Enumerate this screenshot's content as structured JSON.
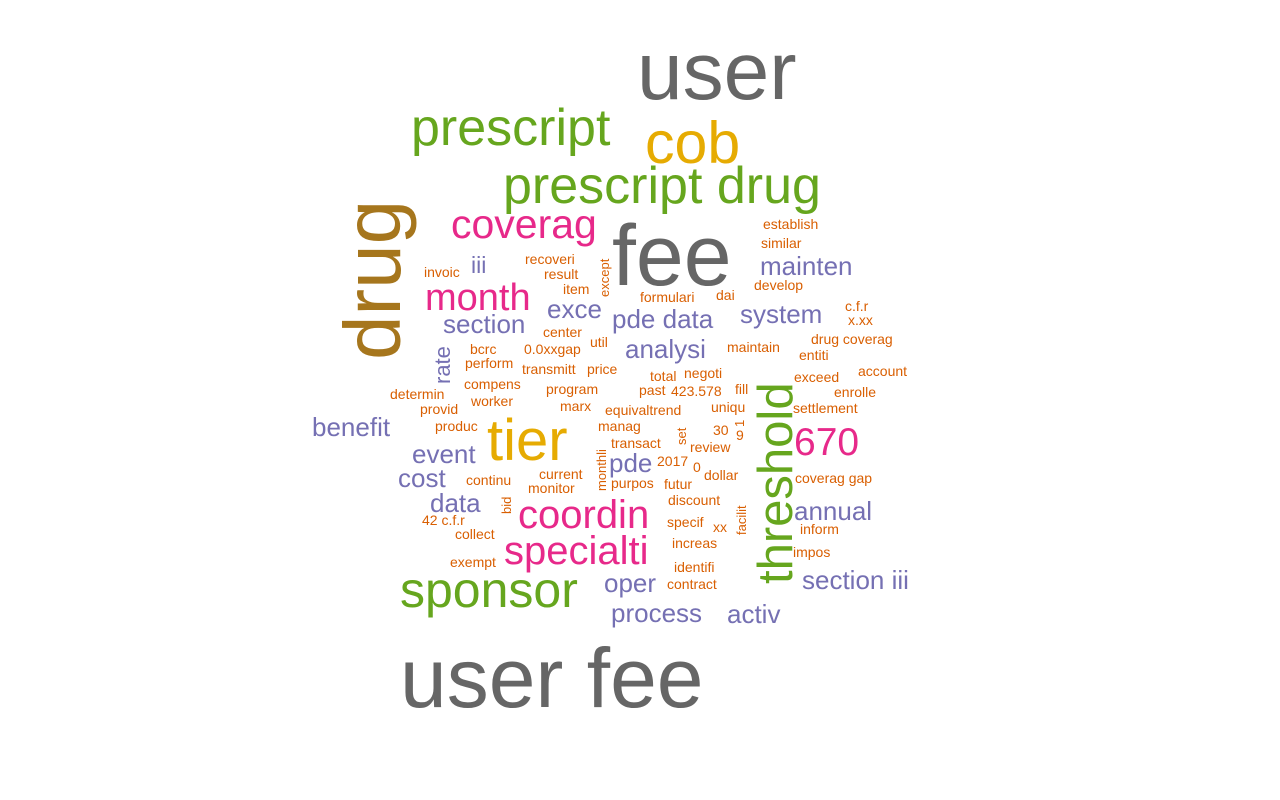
{
  "palette": {
    "gray": "#666666",
    "yellow": "#e6ab02",
    "green": "#66a61e",
    "brown": "#a6761d",
    "pink": "#e7298a",
    "purple": "#7570b3",
    "orange": "#d95f02"
  },
  "words": {
    "user": "user",
    "user_fee": "user fee",
    "fee": "fee",
    "prescript": "prescript",
    "cob": "cob",
    "prescript_drug": "prescript drug",
    "drug": "drug",
    "coverag": "coverag",
    "tier": "tier",
    "threshold": "threshold",
    "sponsor": "sponsor",
    "specialti": "specialti",
    "coordin": "coordin",
    "month": "month",
    "n670": "670",
    "mainten": "mainten",
    "section": "section",
    "exce": "exce",
    "pde_data": "pde data",
    "system": "system",
    "analysi": "analysi",
    "rate": "rate",
    "iii": "iii",
    "benefit": "benefit",
    "event": "event",
    "pde": "pde",
    "cost": "cost",
    "data": "data",
    "annual": "annual",
    "oper": "oper",
    "process": "process",
    "activ": "activ",
    "section_iii": "section iii",
    "establish": "establish",
    "similar": "similar",
    "recoveri": "recoveri",
    "except": "except",
    "invoic": "invoic",
    "result": "result",
    "item": "item",
    "develop": "develop",
    "formulari": "formulari",
    "dai": "dai",
    "cfr": "c.f.r",
    "xxx": "x.xx",
    "center": "center",
    "bcrc": "bcrc",
    "xxgap": "0.0xxgap",
    "util": "util",
    "maintain": "maintain",
    "drug_coverag": "drug coverag",
    "entiti": "entiti",
    "perform": "perform",
    "transmitt": "transmitt",
    "price": "price",
    "total": "total",
    "negoti": "negoti",
    "exceed": "exceed",
    "account": "account",
    "compens": "compens",
    "program": "program",
    "past": "past",
    "n423": "423.578",
    "fill": "fill",
    "enrolle": "enrolle",
    "determin": "determin",
    "worker": "worker",
    "marx": "marx",
    "equivaltrend": "equivaltrend",
    "uniqu": "uniqu",
    "settlement": "settlement",
    "provid": "provid",
    "produc": "produc",
    "manag": "manag",
    "set": "set",
    "n30": "30",
    "n1": "1",
    "n9": "9",
    "transact": "transact",
    "review": "review",
    "n2017": "2017",
    "n0": "0",
    "monthli": "monthli",
    "current": "current",
    "futur": "futur",
    "continu": "continu",
    "monitor": "monitor",
    "purpos": "purpos",
    "dollar": "dollar",
    "coverag_gap": "coverag gap",
    "bid": "bid",
    "discount": "discount",
    "facilit": "facilit",
    "n42cfr": "42 c.f.r",
    "specif": "specif",
    "xx": "xx",
    "inform": "inform",
    "collect": "collect",
    "increas": "increas",
    "impos": "impos",
    "exempt": "exempt",
    "identifi": "identifi",
    "contract": "contract"
  }
}
